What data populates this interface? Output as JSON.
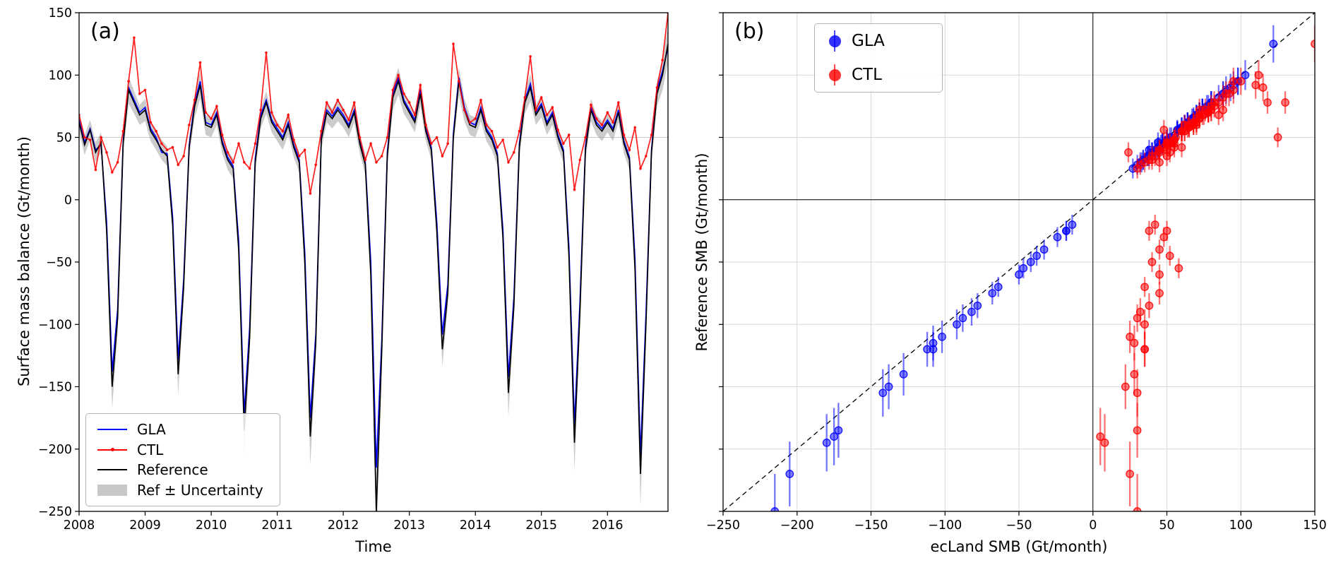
{
  "panels": {
    "a_label": "(a)",
    "b_label": "(b)"
  },
  "colors": {
    "gla": "#0000ff",
    "ctl": "#ff0000",
    "reference": "#000000",
    "band": "#9a9a9a",
    "grid": "#d8d8d8",
    "hline_a": "#c8c8c8"
  },
  "legend_a": {
    "items": [
      {
        "label": "GLA",
        "color": "#0000ff",
        "sample": "line"
      },
      {
        "label": "CTL",
        "color": "#ff0000",
        "sample": "line-dot"
      },
      {
        "label": "Reference",
        "color": "#000000",
        "sample": "line"
      },
      {
        "label": "Ref ± Uncertainty",
        "color": "#9a9a9a",
        "sample": "patch"
      }
    ]
  },
  "legend_b": {
    "items": [
      {
        "label": "GLA",
        "color": "#0000ff"
      },
      {
        "label": "CTL",
        "color": "#ff0000"
      }
    ]
  },
  "chart_data": [
    {
      "id": "panel-a-timeseries",
      "type": "line",
      "xlabel": "Time",
      "ylabel": "Surface mass balance (Gt/month)",
      "x_start_year": 2008,
      "x_months": 108,
      "xlim": [
        2008,
        2016.9167
      ],
      "ylim": [
        -250,
        150
      ],
      "xticks": [
        2008,
        2009,
        2010,
        2011,
        2012,
        2013,
        2014,
        2015,
        2016
      ],
      "yticks": [
        -250,
        -200,
        -150,
        -100,
        -50,
        0,
        50,
        100,
        150
      ],
      "hline": 50,
      "series": [
        {
          "name": "GLA",
          "color": "#0000ff",
          "values": [
            64,
            46,
            57,
            40,
            44,
            -18,
            -138,
            -88,
            47,
            90,
            80,
            70,
            74,
            57,
            50,
            38,
            37,
            -14,
            -128,
            -64,
            44,
            78,
            95,
            62,
            60,
            70,
            47,
            34,
            27,
            -33,
            -172,
            -102,
            33,
            68,
            80,
            64,
            57,
            50,
            62,
            44,
            32,
            -42,
            -175,
            -108,
            50,
            72,
            67,
            74,
            68,
            60,
            72,
            47,
            30,
            -50,
            -215,
            -112,
            38,
            85,
            98,
            80,
            72,
            64,
            88,
            57,
            42,
            -18,
            -108,
            -68,
            53,
            98,
            74,
            62,
            60,
            74,
            57,
            50,
            37,
            -24,
            -142,
            -78,
            45,
            80,
            93,
            70,
            77,
            62,
            70,
            52,
            40,
            -38,
            -180,
            -82,
            43,
            74,
            62,
            57,
            64,
            57,
            72,
            47,
            34,
            -47,
            -205,
            -92,
            40,
            88,
            103,
            122
          ]
        },
        {
          "name": "CTL",
          "color": "#ff0000",
          "marker": "dot",
          "values": [
            68,
            50,
            48,
            24,
            50,
            38,
            22,
            30,
            55,
            95,
            130,
            85,
            88,
            62,
            55,
            45,
            40,
            42,
            28,
            35,
            60,
            80,
            110,
            70,
            65,
            75,
            52,
            38,
            30,
            45,
            30,
            25,
            45,
            72,
            118,
            70,
            60,
            55,
            68,
            48,
            35,
            40,
            5,
            28,
            55,
            78,
            70,
            80,
            72,
            64,
            78,
            50,
            32,
            45,
            30,
            35,
            50,
            88,
            100,
            85,
            78,
            68,
            92,
            60,
            45,
            50,
            35,
            45,
            125,
            95,
            72,
            62,
            65,
            80,
            60,
            55,
            42,
            48,
            30,
            38,
            55,
            82,
            115,
            72,
            82,
            68,
            74,
            56,
            45,
            52,
            8,
            32,
            50,
            76,
            65,
            60,
            70,
            62,
            78,
            52,
            40,
            58,
            25,
            35,
            52,
            90,
            112,
            150
          ]
        },
        {
          "name": "Reference",
          "color": "#000000",
          "values": [
            62,
            44,
            56,
            38,
            46,
            -25,
            -150,
            -95,
            45,
            88,
            78,
            68,
            72,
            55,
            48,
            40,
            35,
            -20,
            -140,
            -70,
            42,
            75,
            92,
            60,
            58,
            68,
            45,
            32,
            25,
            -40,
            -185,
            -110,
            30,
            65,
            78,
            62,
            55,
            48,
            60,
            42,
            30,
            -50,
            -190,
            -115,
            48,
            70,
            65,
            72,
            66,
            58,
            70,
            45,
            28,
            -60,
            -250,
            -120,
            35,
            82,
            95,
            78,
            70,
            62,
            85,
            55,
            40,
            -25,
            -120,
            -75,
            50,
            95,
            72,
            60,
            58,
            72,
            55,
            48,
            35,
            -30,
            -155,
            -85,
            42,
            78,
            90,
            68,
            75,
            60,
            68,
            50,
            38,
            -45,
            -195,
            -90,
            40,
            72,
            60,
            55,
            62,
            55,
            70,
            45,
            32,
            -55,
            -220,
            -100,
            38,
            85,
            100,
            125
          ]
        }
      ],
      "uncertainty_band": {
        "name": "Ref ± Uncertainty",
        "color": "#9a9a9a",
        "values": [
          8,
          8,
          8,
          8,
          8,
          8,
          18,
          11,
          8,
          11,
          9,
          8,
          9,
          8,
          8,
          8,
          8,
          8,
          17,
          8,
          8,
          9,
          11,
          8,
          8,
          8,
          8,
          8,
          8,
          8,
          22,
          13,
          8,
          8,
          9,
          8,
          8,
          8,
          8,
          8,
          8,
          8,
          23,
          14,
          8,
          8,
          8,
          9,
          8,
          8,
          8,
          8,
          8,
          8,
          30,
          14,
          8,
          10,
          11,
          9,
          8,
          8,
          10,
          8,
          8,
          8,
          14,
          9,
          8,
          11,
          9,
          8,
          8,
          9,
          8,
          8,
          8,
          8,
          19,
          10,
          8,
          9,
          11,
          8,
          9,
          8,
          8,
          8,
          8,
          8,
          23,
          11,
          8,
          9,
          8,
          8,
          8,
          8,
          8,
          8,
          8,
          8,
          26,
          12,
          8,
          10,
          12,
          15
        ]
      }
    },
    {
      "id": "panel-b-scatter",
      "type": "scatter",
      "xlabel": "ecLand SMB (Gt/month)",
      "ylabel": "Reference SMB (Gt/month)",
      "xlim": [
        -250,
        150
      ],
      "ylim": [
        -250,
        150
      ],
      "xticks": [
        -250,
        -200,
        -150,
        -100,
        -50,
        0,
        50,
        100,
        150
      ],
      "yticks": [
        -250,
        -200,
        -150,
        -100,
        -50,
        0,
        50,
        100,
        150
      ],
      "grid": true,
      "zero_lines": true,
      "identity_line": "dashed 1:1",
      "points": "monthly pairs (model SMB on x, Reference SMB on y) taken from the panel-a series; vertical error bars = reference uncertainty",
      "series": [
        {
          "name": "GLA",
          "color": "#0000ff",
          "x_from": "GLA",
          "y_from": "Reference"
        },
        {
          "name": "CTL",
          "color": "#ff0000",
          "x_from": "CTL",
          "y_from": "Reference"
        }
      ]
    }
  ]
}
